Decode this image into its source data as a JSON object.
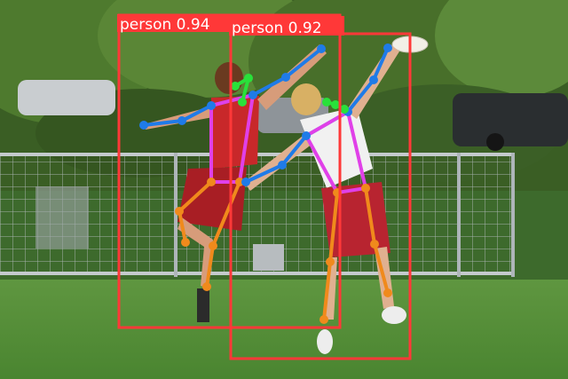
{
  "colors": {
    "box": "#ff3838",
    "limb_arm": "#1f7be8",
    "limb_leg": "#f08a1c",
    "limb_torso": "#e040e8",
    "head_points": "#29e13a",
    "label_text": "#ffffff"
  },
  "detections": [
    {
      "label": "person 0.94",
      "class": "person",
      "confidence": 0.94
    },
    {
      "label": "person 0.92",
      "class": "person",
      "confidence": 0.92
    }
  ]
}
